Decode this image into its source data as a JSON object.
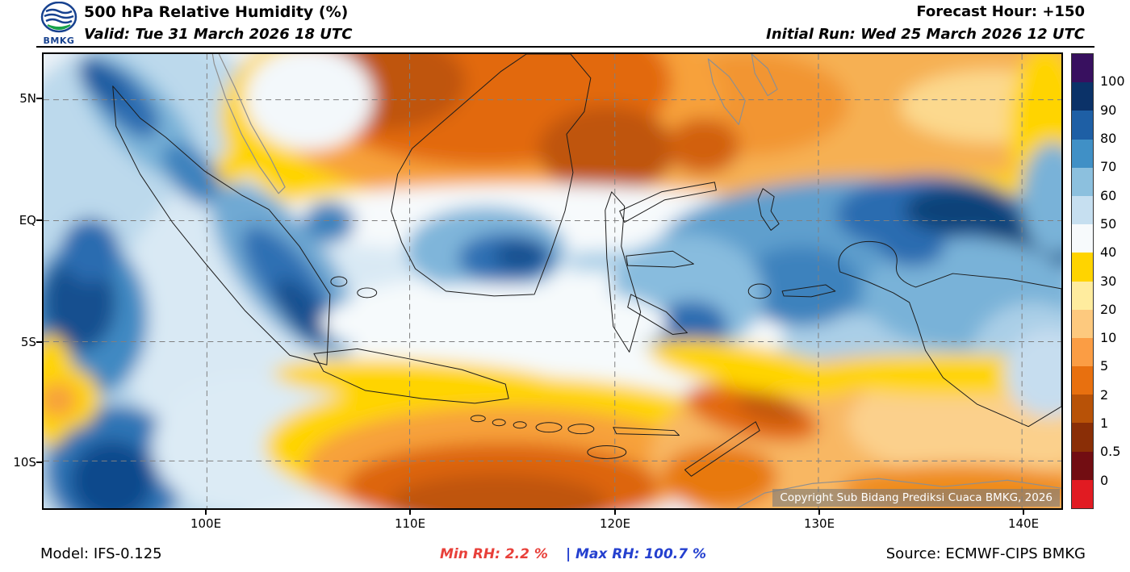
{
  "header": {
    "logo_text": "BMKG",
    "title": "500 hPa Relative Humidity (%)",
    "valid": "Valid: Tue 31 March 2026 18 UTC",
    "forecast_hour": "Forecast Hour: +150",
    "initial_run": "Initial Run: Wed 25 March 2026 12 UTC"
  },
  "map": {
    "x_ticks": [
      "100E",
      "110E",
      "120E",
      "130E",
      "140E"
    ],
    "y_ticks": [
      "5N",
      "EQ",
      "5S",
      "10S"
    ],
    "copyright": "Copyright Sub Bidang Prediksi Cuaca BMKG, 2026"
  },
  "colorbar": {
    "tick_labels": [
      "100",
      "90",
      "80",
      "70",
      "60",
      "50",
      "40",
      "30",
      "20",
      "10",
      "5",
      "2",
      "1",
      "0.5",
      "0"
    ],
    "segment_colors": [
      "#38105f",
      "#0b3268",
      "#1e5fa5",
      "#4090c6",
      "#8cc0de",
      "#c6dff0",
      "#f7fafc",
      "#ffd400",
      "#ffec9e",
      "#fdc97e",
      "#fb9d44",
      "#e8700f",
      "#b85207",
      "#8a2e06",
      "#720d12",
      "#e11b22"
    ]
  },
  "footer": {
    "model": "Model: IFS-0.125",
    "min_rh": "Min RH:  2.2 %",
    "separator": "|",
    "max_rh": "Max RH: 100.7 %",
    "source": "Source: ECMWF-CIPS BMKG",
    "min_color": "#e8403a",
    "max_color": "#2440cf"
  },
  "chart_data": {
    "type": "heatmap",
    "title": "500 hPa Relative Humidity (%)",
    "valid_time": "Tue 31 March 2026 18 UTC",
    "initial_run": "Wed 25 March 2026 12 UTC",
    "forecast_hour": "+150",
    "model": "IFS-0.125",
    "source": "ECMWF-CIPS BMKG",
    "units": "%",
    "x_ticks": [
      "100E",
      "110E",
      "120E",
      "130E",
      "140E"
    ],
    "y_ticks": [
      "5N",
      "EQ",
      "5S",
      "10S"
    ],
    "colorbar_levels": [
      100,
      90,
      80,
      70,
      60,
      50,
      40,
      30,
      20,
      10,
      5,
      2,
      1,
      0.5,
      0
    ],
    "min_value": 2.2,
    "max_value": 100.7
  }
}
